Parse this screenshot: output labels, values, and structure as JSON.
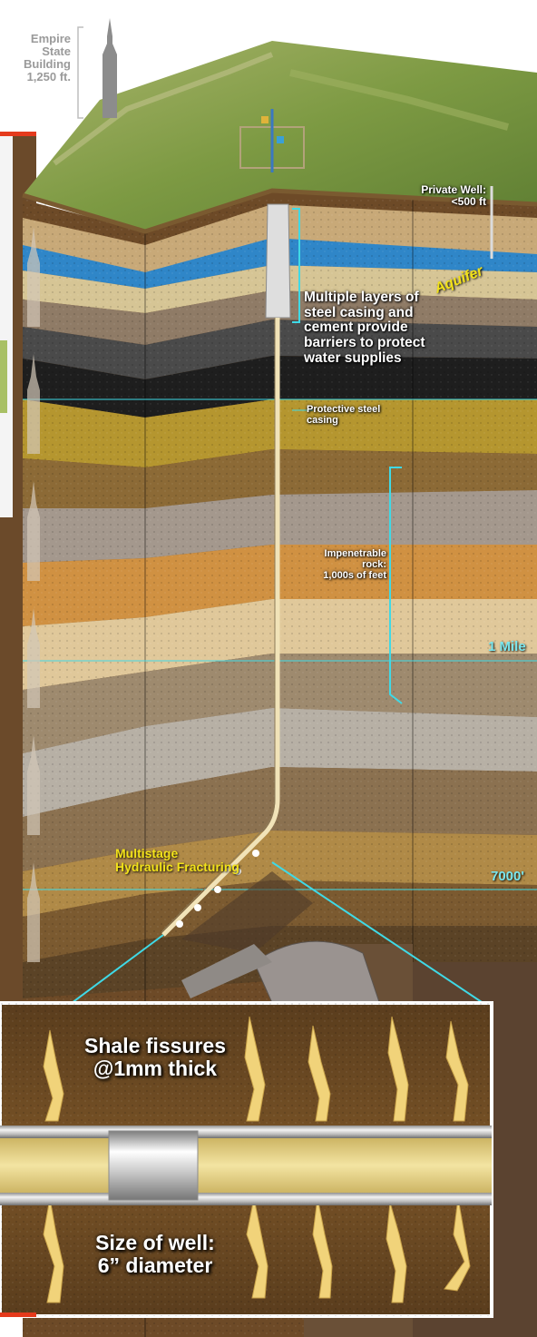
{
  "labels": {
    "empire": [
      "Empire",
      "State",
      "Building",
      "1,250 ft."
    ],
    "private_well": [
      "Private Well:",
      "<500 ft"
    ],
    "aquifer": "Aquifer",
    "casing_note": [
      "Multiple layers of",
      "steel casing and",
      "cement provide",
      "barriers to protect",
      "water supplies"
    ],
    "protective": [
      "Protective steel",
      "casing"
    ],
    "impenetrable": [
      "Impenetrable",
      "rock:",
      "1,000s of feet"
    ],
    "one_mile": "1 Mile",
    "depth_7000": "7000'",
    "fracturing": [
      "Multistage",
      "Hydraulic Fracturing"
    ],
    "fissures": [
      "Shale fissures",
      "@1mm thick"
    ],
    "well_size": [
      "Size of well:",
      "6” diameter"
    ]
  },
  "colors": {
    "guide_line": "#3fd9e6",
    "accent_red": "#e53a1c",
    "label_yellow": "#f2e21a",
    "grass": "#7d9a43"
  },
  "icons": [
    "empire-state-building-icon",
    "well-rig-icon",
    "pipe-plug-icon"
  ]
}
